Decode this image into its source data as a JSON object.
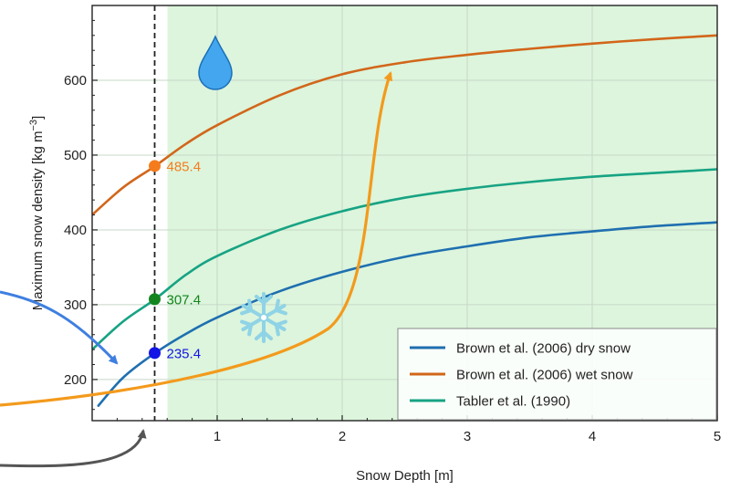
{
  "chart_data": {
    "type": "line",
    "xlabel": "Snow Depth [m]",
    "ylabel": "Maximum snow density [kg m",
    "ylabel_sup": "−3",
    "ylabel_end": "]",
    "xlim": [
      0,
      5
    ],
    "ylim": [
      145,
      700
    ],
    "xticks": [
      1,
      2,
      3,
      4,
      5
    ],
    "yticks": [
      200,
      300,
      400,
      500,
      600
    ],
    "grid": true,
    "legend_position": "bottom-right",
    "shaded_region_x": [
      0.5,
      5
    ],
    "shaded_color": "#dcf5dc",
    "reference_line_x": 0.5,
    "series": [
      {
        "name": "Brown et al. (2006) dry snow",
        "color": "#1f6fb0",
        "x": [
          0.05,
          0.25,
          0.5,
          0.75,
          1.0,
          1.5,
          2.0,
          2.5,
          3.0,
          3.5,
          4.0,
          4.5,
          5.0
        ],
        "y": [
          165,
          203,
          235,
          261,
          283,
          318,
          344,
          364,
          378,
          390,
          398,
          405,
          410
        ]
      },
      {
        "name": "Brown et al. (2006) wet snow",
        "color": "#d2661a",
        "x": [
          0.0,
          0.25,
          0.5,
          0.75,
          1.0,
          1.5,
          2.0,
          2.5,
          3.0,
          3.5,
          4.0,
          4.5,
          5.0
        ],
        "y": [
          420,
          457,
          485,
          515,
          540,
          580,
          608,
          624,
          634,
          642,
          649,
          655,
          660
        ]
      },
      {
        "name": "Tabler et al. (1990)",
        "color": "#17a383",
        "x": [
          0.0,
          0.25,
          0.5,
          0.75,
          1.0,
          1.5,
          2.0,
          2.5,
          3.0,
          3.5,
          4.0,
          4.5,
          5.0
        ],
        "y": [
          240,
          278,
          307,
          340,
          365,
          400,
          425,
          443,
          455,
          464,
          471,
          476,
          481
        ]
      }
    ],
    "points": [
      {
        "x": 0.5,
        "y": 485.4,
        "label": "485.4",
        "color": "#f57c1c"
      },
      {
        "x": 0.5,
        "y": 307.4,
        "label": "307.4",
        "color": "#14851e"
      },
      {
        "x": 0.5,
        "y": 235.4,
        "label": "235.4",
        "color": "#1414e6"
      }
    ]
  },
  "colors": {
    "arrow_orange": "#f39a1c",
    "arrow_blue": "#3f7fe0",
    "arrow_gray": "#555555",
    "drop": "#43a6ee",
    "snowflake": "#8fd3e6"
  },
  "icons": {
    "drop": "water-drop-icon",
    "snowflake": "snowflake-icon"
  }
}
